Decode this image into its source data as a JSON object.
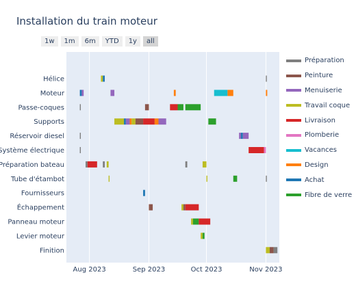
{
  "chart_data": {
    "type": "timeline",
    "title": "Installation du train moteur",
    "range_buttons": [
      "1w",
      "1m",
      "6m",
      "YTD",
      "1y",
      "all"
    ],
    "active_range": "all",
    "x_range": [
      "2023-07-20",
      "2023-11-08"
    ],
    "x_ticks": [
      {
        "date": "2023-08-01",
        "label": "Aug 2023"
      },
      {
        "date": "2023-09-01",
        "label": "Sep 2023"
      },
      {
        "date": "2023-10-01",
        "label": "Oct 2023"
      },
      {
        "date": "2023-11-01",
        "label": "Nov 2023"
      }
    ],
    "categories": [
      "Hélice",
      "Moteur",
      "Passe-coques",
      "Supports",
      "Réservoir diesel",
      "Système électrique",
      "Préparation bateau",
      "Tube d'étambot",
      "Fournisseurs",
      "Échappement",
      "Panneau moteur",
      "Levier moteur",
      "Finition"
    ],
    "legend_position": "right",
    "series": [
      {
        "name": "Préparation",
        "color": "#7f7f7f"
      },
      {
        "name": "Peinture",
        "color": "#8c564b"
      },
      {
        "name": "Menuiserie",
        "color": "#9467bd"
      },
      {
        "name": "Travail coque",
        "color": "#bcbd22"
      },
      {
        "name": "Livraison",
        "color": "#d62728"
      },
      {
        "name": "Plomberie",
        "color": "#e377c2"
      },
      {
        "name": "Vacances",
        "color": "#17becf"
      },
      {
        "name": "Design",
        "color": "#ff7f0e"
      },
      {
        "name": "Achat",
        "color": "#1f77b4"
      },
      {
        "name": "Fibre de verre",
        "color": "#2ca02c"
      }
    ],
    "tasks": [
      {
        "category": "Hélice",
        "series": "Travail coque",
        "start": "2023-08-07",
        "end": "2023-08-08"
      },
      {
        "category": "Hélice",
        "series": "Achat",
        "start": "2023-08-08",
        "end": "2023-08-09"
      },
      {
        "category": "Hélice",
        "series": "Préparation",
        "start": "2023-11-01",
        "end": "2023-11-01.5"
      },
      {
        "category": "Moteur",
        "series": "Achat",
        "start": "2023-07-27",
        "end": "2023-07-28"
      },
      {
        "category": "Moteur",
        "series": "Menuiserie",
        "start": "2023-07-28",
        "end": "2023-07-29"
      },
      {
        "category": "Moteur",
        "series": "Menuiserie",
        "start": "2023-08-12",
        "end": "2023-08-14"
      },
      {
        "category": "Moteur",
        "series": "Design",
        "start": "2023-09-14",
        "end": "2023-09-15"
      },
      {
        "category": "Moteur",
        "series": "Vacances",
        "start": "2023-10-05",
        "end": "2023-10-12"
      },
      {
        "category": "Moteur",
        "series": "Design",
        "start": "2023-10-12",
        "end": "2023-10-15"
      },
      {
        "category": "Moteur",
        "series": "Design",
        "start": "2023-11-01",
        "end": "2023-11-01.7"
      },
      {
        "category": "Passe-coques",
        "series": "Préparation",
        "start": "2023-07-27",
        "end": "2023-07-27.5"
      },
      {
        "category": "Passe-coques",
        "series": "Peinture",
        "start": "2023-08-30",
        "end": "2023-09-01"
      },
      {
        "category": "Passe-coques",
        "series": "Livraison",
        "start": "2023-09-12",
        "end": "2023-09-16"
      },
      {
        "category": "Passe-coques",
        "series": "Fibre de verre",
        "start": "2023-09-16",
        "end": "2023-09-19"
      },
      {
        "category": "Passe-coques",
        "series": "Fibre de verre",
        "start": "2023-09-20",
        "end": "2023-09-28"
      },
      {
        "category": "Supports",
        "series": "Travail coque",
        "start": "2023-08-14",
        "end": "2023-08-19"
      },
      {
        "category": "Supports",
        "series": "Achat",
        "start": "2023-08-19",
        "end": "2023-08-20"
      },
      {
        "category": "Supports",
        "series": "Menuiserie",
        "start": "2023-08-20",
        "end": "2023-08-22"
      },
      {
        "category": "Supports",
        "series": "Design",
        "start": "2023-08-22",
        "end": "2023-08-23"
      },
      {
        "category": "Supports",
        "series": "Travail coque",
        "start": "2023-08-23",
        "end": "2023-08-25"
      },
      {
        "category": "Supports",
        "series": "Peinture",
        "start": "2023-08-25",
        "end": "2023-08-29"
      },
      {
        "category": "Supports",
        "series": "Livraison",
        "start": "2023-08-29",
        "end": "2023-09-04"
      },
      {
        "category": "Supports",
        "series": "Design",
        "start": "2023-09-04",
        "end": "2023-09-06"
      },
      {
        "category": "Supports",
        "series": "Menuiserie",
        "start": "2023-09-06",
        "end": "2023-09-10"
      },
      {
        "category": "Supports",
        "series": "Fibre de verre",
        "start": "2023-10-02",
        "end": "2023-10-06"
      },
      {
        "category": "Réservoir diesel",
        "series": "Menuiserie",
        "start": "2023-10-18",
        "end": "2023-10-19"
      },
      {
        "category": "Réservoir diesel",
        "series": "Achat",
        "start": "2023-10-19",
        "end": "2023-10-20"
      },
      {
        "category": "Réservoir diesel",
        "series": "Menuiserie",
        "start": "2023-10-20",
        "end": "2023-10-23"
      },
      {
        "category": "Réservoir diesel",
        "series": "Préparation",
        "start": "2023-07-27",
        "end": "2023-07-27.5"
      },
      {
        "category": "Système électrique",
        "series": "Préparation",
        "start": "2023-07-27",
        "end": "2023-07-27.5"
      },
      {
        "category": "Système électrique",
        "series": "Livraison",
        "start": "2023-10-23",
        "end": "2023-10-31"
      },
      {
        "category": "Système électrique",
        "series": "Plomberie",
        "start": "2023-10-31",
        "end": "2023-11-01"
      },
      {
        "category": "Préparation bateau",
        "series": "Préparation",
        "start": "2023-07-30",
        "end": "2023-07-31"
      },
      {
        "category": "Préparation bateau",
        "series": "Livraison",
        "start": "2023-07-31",
        "end": "2023-08-05"
      },
      {
        "category": "Préparation bateau",
        "series": "Préparation",
        "start": "2023-08-08",
        "end": "2023-08-09"
      },
      {
        "category": "Préparation bateau",
        "series": "Travail coque",
        "start": "2023-08-10",
        "end": "2023-08-11"
      },
      {
        "category": "Préparation bateau",
        "series": "Préparation",
        "start": "2023-09-20",
        "end": "2023-09-21"
      },
      {
        "category": "Préparation bateau",
        "series": "Travail coque",
        "start": "2023-09-29",
        "end": "2023-10-01"
      },
      {
        "category": "Tube d'étambot",
        "series": "Travail coque",
        "start": "2023-08-11",
        "end": "2023-08-11.5"
      },
      {
        "category": "Tube d'étambot",
        "series": "Travail coque",
        "start": "2023-10-01",
        "end": "2023-10-01.5"
      },
      {
        "category": "Tube d'étambot",
        "series": "Fibre de verre",
        "start": "2023-10-15",
        "end": "2023-10-17"
      },
      {
        "category": "Tube d'étambot",
        "series": "Préparation",
        "start": "2023-11-01",
        "end": "2023-11-01.5"
      },
      {
        "category": "Fournisseurs",
        "series": "Achat",
        "start": "2023-08-29",
        "end": "2023-08-30"
      },
      {
        "category": "Échappement",
        "series": "Peinture",
        "start": "2023-09-01",
        "end": "2023-09-03"
      },
      {
        "category": "Échappement",
        "series": "Travail coque",
        "start": "2023-09-18",
        "end": "2023-09-19"
      },
      {
        "category": "Échappement",
        "series": "Peinture",
        "start": "2023-09-19",
        "end": "2023-09-20"
      },
      {
        "category": "Échappement",
        "series": "Livraison",
        "start": "2023-09-20",
        "end": "2023-09-27"
      },
      {
        "category": "Panneau moteur",
        "series": "Travail coque",
        "start": "2023-09-23",
        "end": "2023-09-24"
      },
      {
        "category": "Panneau moteur",
        "series": "Fibre de verre",
        "start": "2023-09-24",
        "end": "2023-09-27"
      },
      {
        "category": "Panneau moteur",
        "series": "Livraison",
        "start": "2023-09-27",
        "end": "2023-10-03"
      },
      {
        "category": "Levier moteur",
        "series": "Travail coque",
        "start": "2023-09-28",
        "end": "2023-09-29"
      },
      {
        "category": "Levier moteur",
        "series": "Fibre de verre",
        "start": "2023-09-29",
        "end": "2023-09-30"
      },
      {
        "category": "Finition",
        "series": "Travail coque",
        "start": "2023-11-01",
        "end": "2023-11-03"
      },
      {
        "category": "Finition",
        "series": "Peinture",
        "start": "2023-11-03",
        "end": "2023-11-05"
      },
      {
        "category": "Finition",
        "series": "Préparation",
        "start": "2023-11-05",
        "end": "2023-11-07"
      }
    ]
  }
}
